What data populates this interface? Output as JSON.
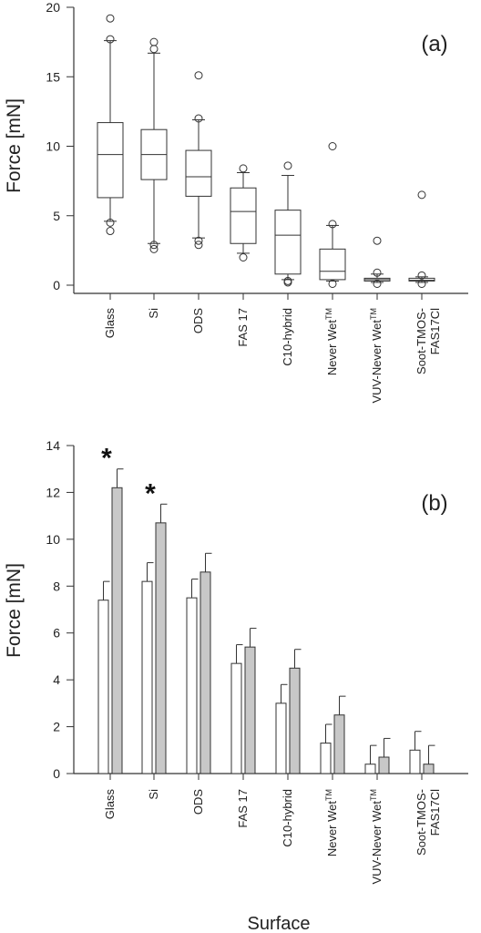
{
  "colors": {
    "axis": "#333333",
    "bar_white": "#ffffff",
    "bar_gray": "#c8c8c8",
    "outline": "#333333"
  },
  "chart_data": [
    {
      "type": "box",
      "panel_label": "(a)",
      "ylabel": "Force [mN]",
      "ylim": [
        0,
        20
      ],
      "yticks": [
        0,
        5,
        10,
        15,
        20
      ],
      "categories": [
        {
          "label": "Glass",
          "sup": ""
        },
        {
          "label": "Si",
          "sup": ""
        },
        {
          "label": "ODS",
          "sup": ""
        },
        {
          "label": "FAS 17",
          "sup": ""
        },
        {
          "label": "C10-hybrid",
          "sup": ""
        },
        {
          "label": "Never Wet",
          "sup": "TM"
        },
        {
          "label": "VUV-Never Wet",
          "sup": "TM"
        },
        {
          "label": "Soot-TMOS-",
          "line2": "FAS17Cl",
          "sup": ""
        }
      ],
      "boxes": [
        {
          "whisker_low": 4.6,
          "q1": 6.3,
          "median": 9.4,
          "q3": 11.7,
          "whisker_high": 17.6,
          "outliers": [
            3.9,
            4.5,
            17.7,
            19.2
          ]
        },
        {
          "whisker_low": 3.0,
          "q1": 7.6,
          "median": 9.4,
          "q3": 11.2,
          "whisker_high": 16.7,
          "outliers": [
            2.6,
            2.9,
            17.0,
            17.5
          ]
        },
        {
          "whisker_low": 3.4,
          "q1": 6.4,
          "median": 7.8,
          "q3": 9.7,
          "whisker_high": 11.9,
          "outliers": [
            2.9,
            3.2,
            12.0,
            15.1
          ]
        },
        {
          "whisker_low": 2.3,
          "q1": 3.0,
          "median": 5.3,
          "q3": 7.0,
          "whisker_high": 8.1,
          "outliers": [
            2.0,
            8.4
          ]
        },
        {
          "whisker_low": 0.4,
          "q1": 0.8,
          "median": 3.6,
          "q3": 5.4,
          "whisker_high": 7.9,
          "outliers": [
            0.2,
            0.3,
            8.6
          ]
        },
        {
          "whisker_low": 0.3,
          "q1": 0.4,
          "median": 1.0,
          "q3": 2.6,
          "whisker_high": 4.3,
          "outliers": [
            0.1,
            4.4,
            10.0
          ]
        },
        {
          "whisker_low": 0.2,
          "q1": 0.3,
          "median": 0.4,
          "q3": 0.5,
          "whisker_high": 0.8,
          "outliers": [
            0.1,
            0.9,
            3.2
          ]
        },
        {
          "whisker_low": 0.2,
          "q1": 0.3,
          "median": 0.35,
          "q3": 0.5,
          "whisker_high": 0.6,
          "outliers": [
            0.1,
            0.7,
            6.5
          ]
        }
      ]
    },
    {
      "type": "bar",
      "panel_label": "(b)",
      "ylabel": "Force [mN]",
      "xlabel": "Surface",
      "ylim": [
        0,
        14
      ],
      "yticks": [
        0,
        2,
        4,
        6,
        8,
        10,
        12,
        14
      ],
      "categories": [
        {
          "label": "Glass",
          "sup": ""
        },
        {
          "label": "Si",
          "sup": ""
        },
        {
          "label": "ODS",
          "sup": ""
        },
        {
          "label": "FAS 17",
          "sup": ""
        },
        {
          "label": "C10-hybrid",
          "sup": ""
        },
        {
          "label": "Never Wet",
          "sup": "TM"
        },
        {
          "label": "VUV-Never Wet",
          "sup": "TM"
        },
        {
          "label": "Soot-TMOS-",
          "line2": "FAS17Cl",
          "sup": ""
        }
      ],
      "series": [
        {
          "fill": "white",
          "values": [
            7.4,
            8.2,
            7.5,
            4.7,
            3.0,
            1.3,
            0.4,
            1.0
          ],
          "errors": [
            0.8,
            0.8,
            0.8,
            0.8,
            0.8,
            0.8,
            0.8,
            0.8
          ]
        },
        {
          "fill": "gray",
          "values": [
            12.2,
            10.7,
            8.6,
            5.4,
            4.5,
            2.5,
            0.7,
            0.4
          ],
          "errors": [
            0.8,
            0.8,
            0.8,
            0.8,
            0.8,
            0.8,
            0.8,
            0.8
          ]
        }
      ],
      "significance": [
        {
          "category_index": 0,
          "marker": "*"
        },
        {
          "category_index": 1,
          "marker": "*"
        }
      ]
    }
  ]
}
